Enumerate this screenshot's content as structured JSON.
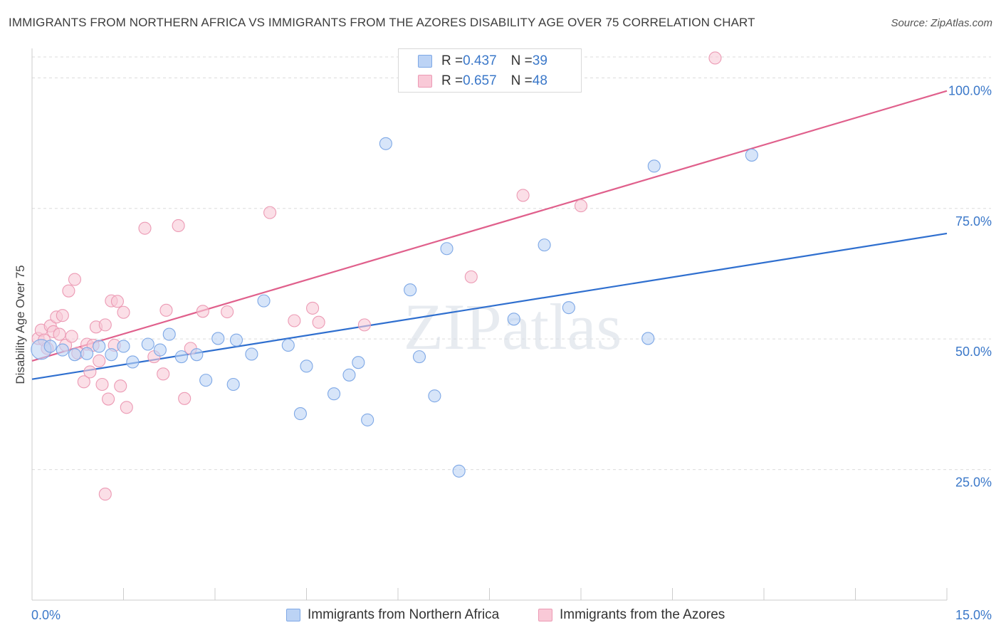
{
  "title": "IMMIGRANTS FROM NORTHERN AFRICA VS IMMIGRANTS FROM THE AZORES DISABILITY AGE OVER 75 CORRELATION CHART",
  "source": "Source: ZipAtlas.com",
  "watermark": "ZIPatlas",
  "colors": {
    "blue_fill": "#bcd3f5",
    "blue_stroke": "#7ea8e6",
    "blue_line": "#2f6fcf",
    "pink_fill": "#f9c9d7",
    "pink_stroke": "#ec9ab4",
    "pink_line": "#e0608c",
    "tick_label": "#3b78c9"
  },
  "legend": {
    "rows": [
      {
        "r_label": "R = ",
        "r_value": "0.437",
        "n_label": "N = ",
        "n_value": "39"
      },
      {
        "r_label": "R = ",
        "r_value": "0.657",
        "n_label": "N = ",
        "n_value": "48"
      }
    ]
  },
  "chart_data": {
    "type": "scatter",
    "title": "IMMIGRANTS FROM NORTHERN AFRICA VS IMMIGRANTS FROM THE AZORES DISABILITY AGE OVER 75 CORRELATION CHART",
    "xlabel": "",
    "ylabel": "Disability Age Over 75",
    "xlim": [
      0,
      15
    ],
    "ylim": [
      0,
      104
    ],
    "x_tick_labels": [
      "0.0%",
      "15.0%"
    ],
    "y_ticks": [
      25,
      50,
      75,
      100
    ],
    "y_tick_labels": [
      "25.0%",
      "50.0%",
      "75.0%",
      "100.0%"
    ],
    "grid": "horizontal-dashed",
    "legend_position": "top-center",
    "series": [
      {
        "name": "Immigrants from Northern Africa",
        "trend": {
          "x": [
            0,
            15
          ],
          "y": [
            42.3,
            70.2
          ]
        },
        "points": [
          {
            "x": 0.15,
            "y": 48.0,
            "big": true
          },
          {
            "x": 0.3,
            "y": 48.6
          },
          {
            "x": 0.5,
            "y": 47.9
          },
          {
            "x": 0.7,
            "y": 47.0
          },
          {
            "x": 0.9,
            "y": 47.2
          },
          {
            "x": 1.1,
            "y": 48.6
          },
          {
            "x": 1.3,
            "y": 47.0
          },
          {
            "x": 1.5,
            "y": 48.6
          },
          {
            "x": 1.65,
            "y": 45.6
          },
          {
            "x": 1.9,
            "y": 49.0
          },
          {
            "x": 2.1,
            "y": 47.9
          },
          {
            "x": 2.25,
            "y": 50.9
          },
          {
            "x": 2.45,
            "y": 46.6
          },
          {
            "x": 2.7,
            "y": 47.0
          },
          {
            "x": 2.85,
            "y": 42.1
          },
          {
            "x": 3.05,
            "y": 50.1
          },
          {
            "x": 3.3,
            "y": 41.3
          },
          {
            "x": 3.35,
            "y": 49.8
          },
          {
            "x": 3.6,
            "y": 47.1
          },
          {
            "x": 3.8,
            "y": 57.3
          },
          {
            "x": 4.2,
            "y": 48.8
          },
          {
            "x": 4.4,
            "y": 35.7
          },
          {
            "x": 4.5,
            "y": 44.8
          },
          {
            "x": 4.95,
            "y": 39.5
          },
          {
            "x": 5.2,
            "y": 43.1
          },
          {
            "x": 5.35,
            "y": 45.5
          },
          {
            "x": 5.5,
            "y": 34.5
          },
          {
            "x": 5.8,
            "y": 87.4
          },
          {
            "x": 6.2,
            "y": 59.4
          },
          {
            "x": 6.35,
            "y": 46.6
          },
          {
            "x": 6.6,
            "y": 39.1
          },
          {
            "x": 6.8,
            "y": 67.3
          },
          {
            "x": 7.0,
            "y": 24.7
          },
          {
            "x": 7.9,
            "y": 53.8
          },
          {
            "x": 8.4,
            "y": 68.0
          },
          {
            "x": 8.8,
            "y": 56.0
          },
          {
            "x": 10.1,
            "y": 50.1
          },
          {
            "x": 10.2,
            "y": 83.1
          },
          {
            "x": 11.8,
            "y": 85.2
          }
        ]
      },
      {
        "name": "Immigrants from the Azores",
        "trend": {
          "x": [
            0,
            15
          ],
          "y": [
            45.8,
            97.5
          ]
        },
        "points": [
          {
            "x": 0.1,
            "y": 50.1
          },
          {
            "x": 0.15,
            "y": 51.7
          },
          {
            "x": 0.2,
            "y": 49.8
          },
          {
            "x": 0.25,
            "y": 48.2
          },
          {
            "x": 0.3,
            "y": 52.5
          },
          {
            "x": 0.35,
            "y": 51.4
          },
          {
            "x": 0.4,
            "y": 54.2
          },
          {
            "x": 0.45,
            "y": 50.9
          },
          {
            "x": 0.5,
            "y": 54.5
          },
          {
            "x": 0.55,
            "y": 48.8
          },
          {
            "x": 0.6,
            "y": 59.2
          },
          {
            "x": 0.65,
            "y": 50.5
          },
          {
            "x": 0.7,
            "y": 61.4
          },
          {
            "x": 0.75,
            "y": 47.3
          },
          {
            "x": 0.85,
            "y": 41.8
          },
          {
            "x": 0.9,
            "y": 49.0
          },
          {
            "x": 0.95,
            "y": 43.7
          },
          {
            "x": 1.0,
            "y": 48.8
          },
          {
            "x": 1.05,
            "y": 52.3
          },
          {
            "x": 1.1,
            "y": 45.8
          },
          {
            "x": 1.15,
            "y": 41.3
          },
          {
            "x": 1.2,
            "y": 52.7
          },
          {
            "x": 1.25,
            "y": 38.5
          },
          {
            "x": 1.3,
            "y": 57.3
          },
          {
            "x": 1.35,
            "y": 48.8
          },
          {
            "x": 1.4,
            "y": 57.2
          },
          {
            "x": 1.45,
            "y": 41.0
          },
          {
            "x": 1.5,
            "y": 55.1
          },
          {
            "x": 1.55,
            "y": 36.9
          },
          {
            "x": 1.2,
            "y": 20.3
          },
          {
            "x": 1.85,
            "y": 71.2
          },
          {
            "x": 2.0,
            "y": 46.6
          },
          {
            "x": 2.15,
            "y": 43.3
          },
          {
            "x": 2.2,
            "y": 55.5
          },
          {
            "x": 2.4,
            "y": 71.7
          },
          {
            "x": 2.5,
            "y": 38.6
          },
          {
            "x": 2.6,
            "y": 48.2
          },
          {
            "x": 2.8,
            "y": 55.3
          },
          {
            "x": 3.2,
            "y": 55.2
          },
          {
            "x": 3.9,
            "y": 74.2
          },
          {
            "x": 4.3,
            "y": 53.5
          },
          {
            "x": 4.6,
            "y": 55.9
          },
          {
            "x": 4.7,
            "y": 53.2
          },
          {
            "x": 5.45,
            "y": 52.7
          },
          {
            "x": 7.2,
            "y": 61.9
          },
          {
            "x": 8.05,
            "y": 77.5
          },
          {
            "x": 9.0,
            "y": 75.5
          },
          {
            "x": 11.2,
            "y": 103.8
          }
        ]
      }
    ]
  }
}
